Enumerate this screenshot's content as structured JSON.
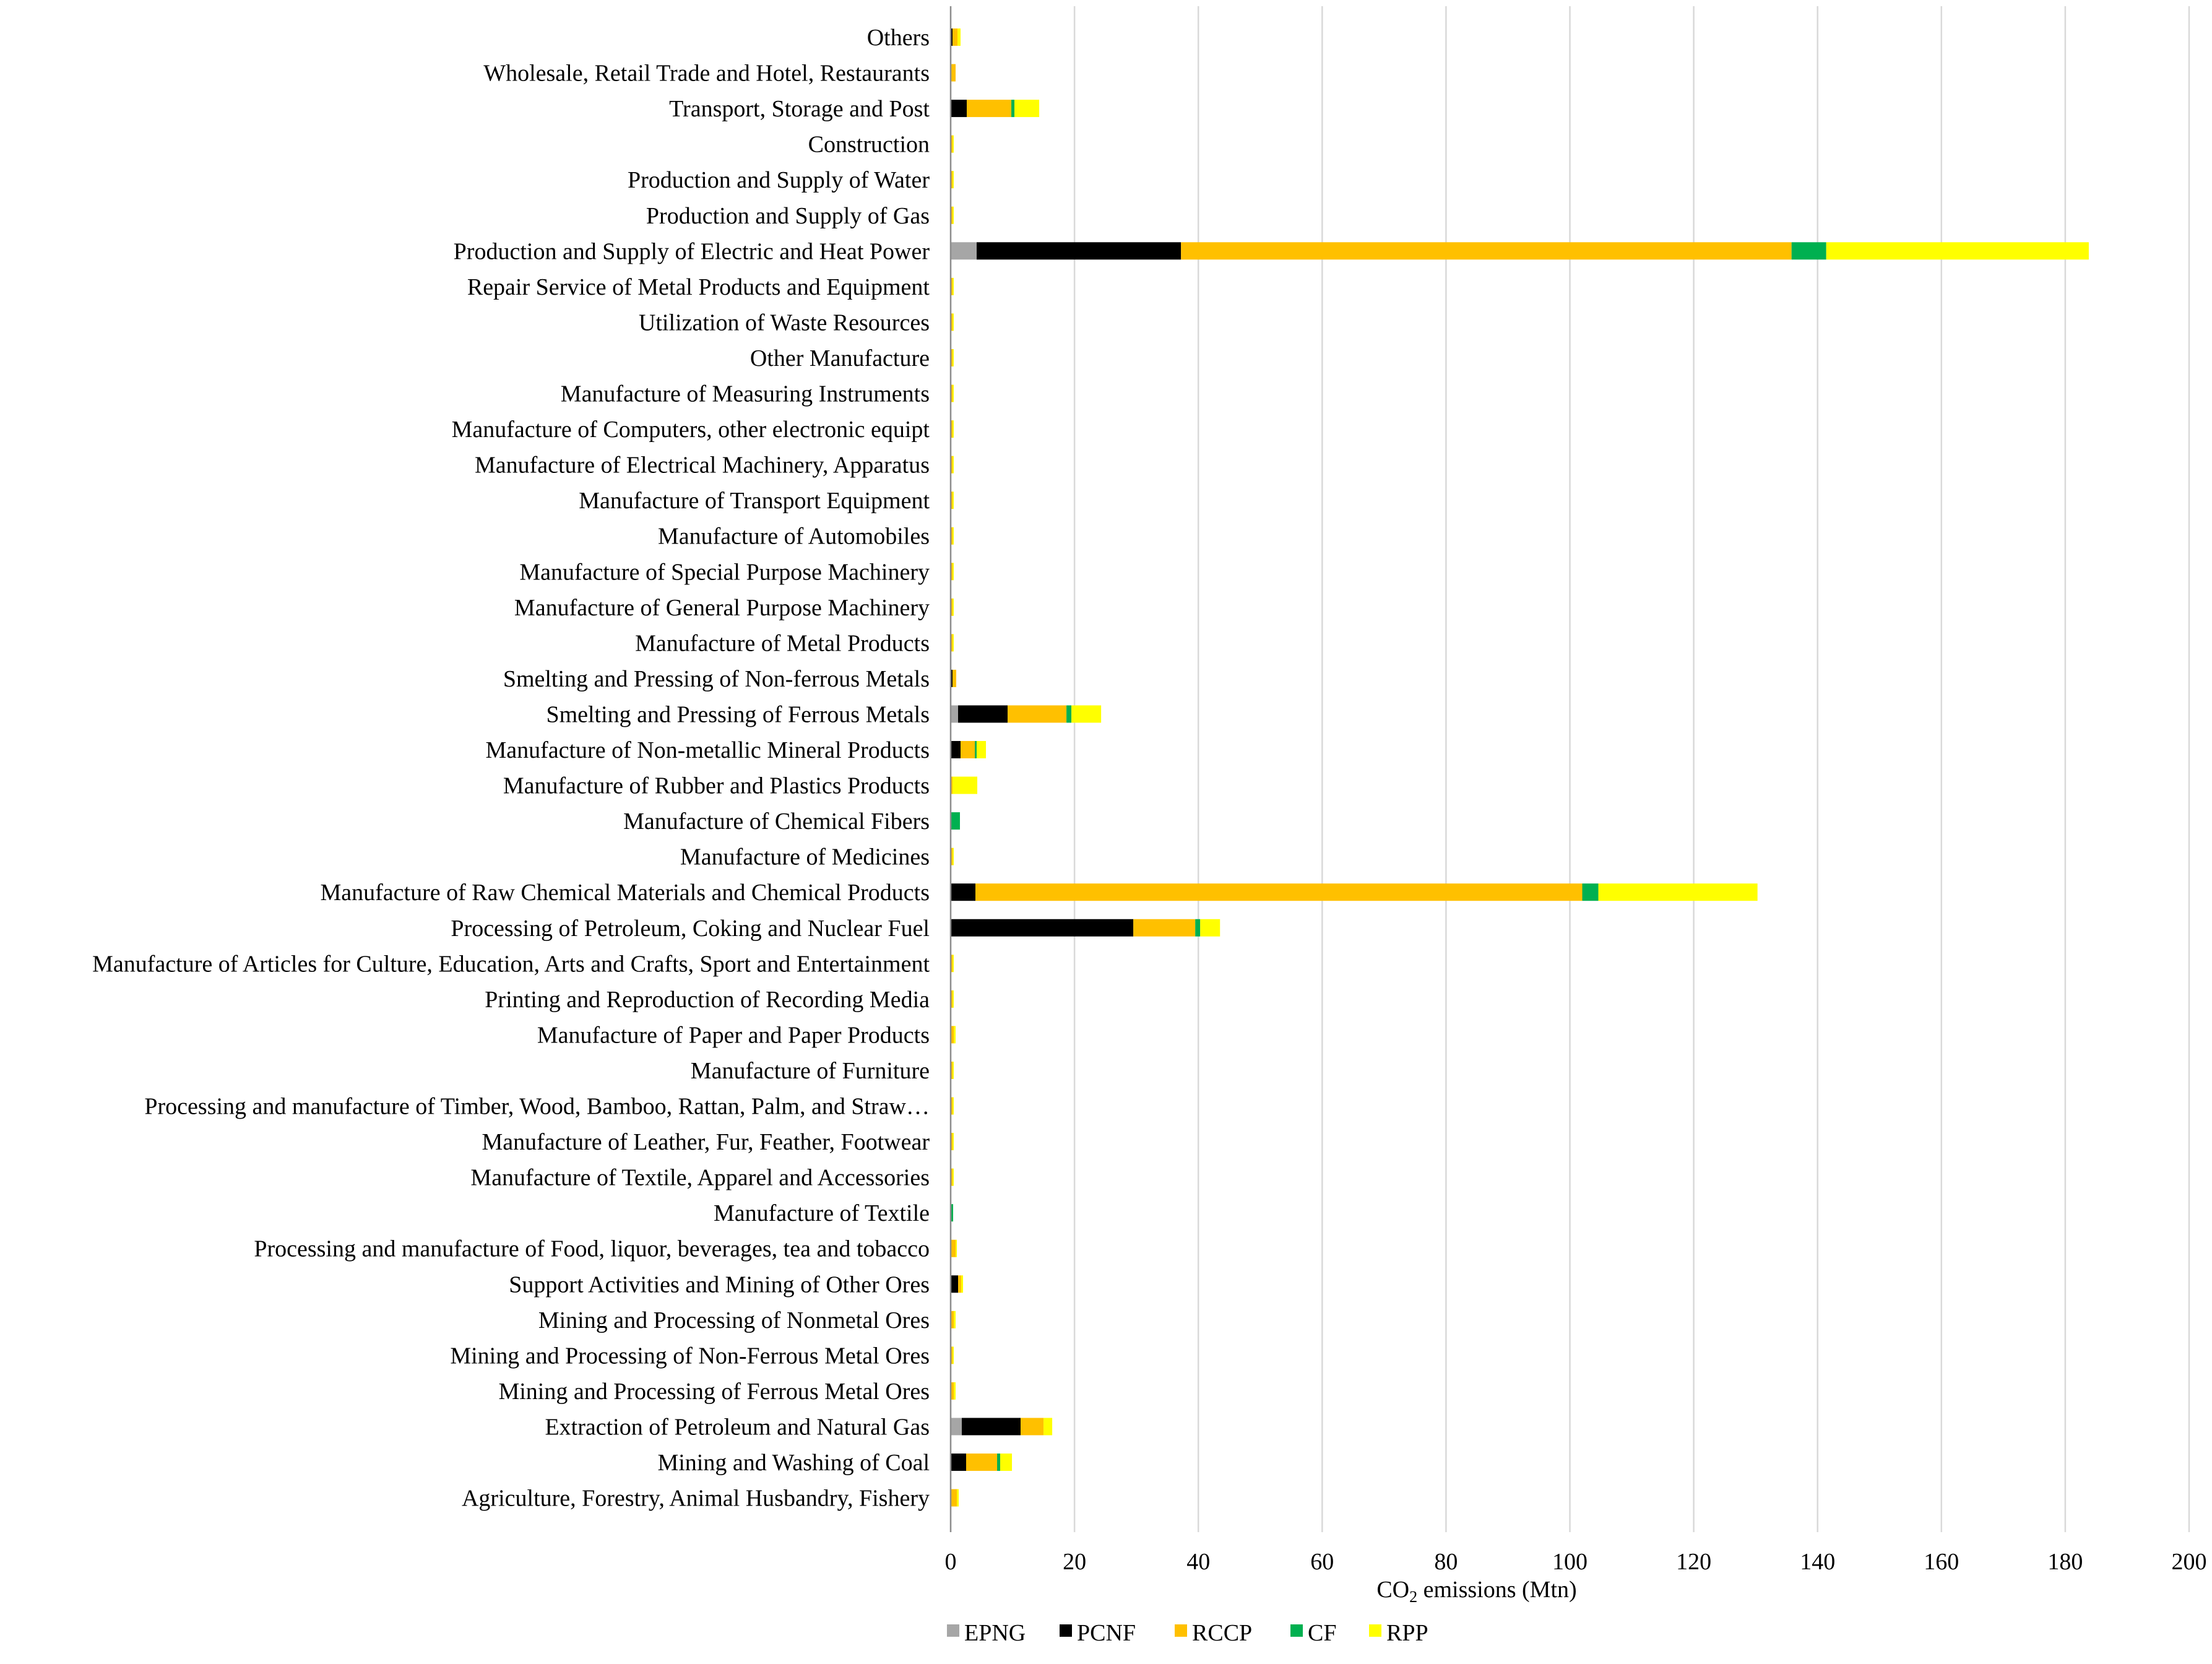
{
  "chart_data": {
    "type": "bar",
    "orientation": "horizontal",
    "stacked": true,
    "title": "",
    "xlabel_main": "CO",
    "xlabel_sub": "2",
    "xlabel_rest": " emissions (Mtn)",
    "xlim": [
      0,
      200
    ],
    "xticks": [
      "0",
      "20",
      "40",
      "60",
      "80",
      "100",
      "120",
      "140",
      "160",
      "180",
      "200"
    ],
    "grid": true,
    "legend_position": "bottom",
    "categories": [
      "Others",
      "Wholesale, Retail Trade and Hotel, Restaurants",
      "Transport, Storage and Post",
      "Construction",
      "Production and Supply of Water",
      "Production and Supply of Gas",
      "Production and Supply of Electric and Heat Power",
      "Repair Service of Metal Products and Equipment",
      "Utilization of Waste Resources",
      "Other Manufacture",
      "Manufacture of Measuring Instruments",
      "Manufacture of Computers, other electronic equipt",
      "Manufacture of Electrical Machinery, Apparatus",
      "Manufacture of Transport Equipment",
      "Manufacture of Automobiles",
      "Manufacture of Special Purpose Machinery",
      "Manufacture of General Purpose Machinery",
      "Manufacture of Metal Products",
      "Smelting and Pressing of Non-ferrous Metals",
      "Smelting and Pressing of Ferrous Metals",
      "Manufacture of Non-metallic Mineral Products",
      "Manufacture of Rubber and Plastics Products",
      "Manufacture of Chemical Fibers",
      "Manufacture of Medicines",
      "Manufacture of Raw Chemical Materials and Chemical Products",
      "Processing of Petroleum, Coking and Nuclear Fuel",
      "Manufacture of Articles for Culture, Education, Arts and Crafts, Sport and Entertainment",
      "Printing and Reproduction of Recording Media",
      "Manufacture of Paper and Paper Products",
      "Manufacture of Furniture",
      "Processing and manufacture of Timber, Wood, Bamboo, Rattan, Palm, and Straw…",
      "Manufacture of Leather, Fur, Feather, Footwear",
      "Manufacture of Textile, Apparel and Accessories",
      "Manufacture of Textile",
      "Processing and manufacture of Food, liquor, beverages, tea and tobacco",
      "Support Activities and Mining of Other Ores",
      "Mining and Processing of Nonmetal Ores",
      "Mining and Processing of Non-Ferrous Metal Ores",
      "Mining and Processing of Ferrous Metal Ores",
      "Extraction of Petroleum and Natural Gas",
      "Mining and Washing of Coal",
      "Agriculture, Forestry, Animal Husbandry, Fishery"
    ],
    "series": [
      {
        "name": "EPNG",
        "color": "#a6a6a6",
        "values": [
          0,
          0,
          0,
          0,
          0,
          0,
          4.2,
          0,
          0,
          0,
          0,
          0,
          0,
          0,
          0,
          0,
          0,
          0,
          0,
          1.2,
          0,
          0,
          0,
          0,
          0,
          0,
          0,
          0,
          0,
          0,
          0,
          0,
          0,
          0,
          0,
          0,
          0,
          0,
          0,
          1.8,
          0,
          0
        ]
      },
      {
        "name": "PCNF",
        "color": "#000000",
        "values": [
          0.3,
          0,
          2.6,
          0,
          0,
          0,
          33.0,
          0,
          0,
          0,
          0,
          0,
          0,
          0,
          0,
          0,
          0,
          0,
          0.3,
          8.0,
          1.6,
          0,
          0,
          0,
          4.0,
          29.5,
          0,
          0,
          0,
          0,
          0,
          0,
          0,
          0,
          0,
          1.2,
          0,
          0,
          0,
          9.5,
          2.5,
          0
        ]
      },
      {
        "name": "RCCP",
        "color": "#ffc000",
        "values": [
          0.8,
          0.8,
          7.2,
          0.3,
          0.3,
          0.3,
          98.6,
          0.3,
          0.3,
          0.3,
          0.3,
          0.3,
          0.3,
          0.3,
          0.3,
          0.3,
          0.3,
          0.3,
          0.6,
          9.5,
          2.3,
          0.3,
          0,
          0.3,
          98.0,
          10.0,
          0.3,
          0.3,
          0.5,
          0.3,
          0.3,
          0.3,
          0.3,
          0,
          0.8,
          0.5,
          0.5,
          0.3,
          0.5,
          3.7,
          5.0,
          1.0
        ]
      },
      {
        "name": "CF",
        "color": "#00b050",
        "values": [
          0,
          0,
          0.5,
          0,
          0,
          0,
          5.6,
          0,
          0,
          0,
          0,
          0,
          0,
          0,
          0,
          0,
          0,
          0,
          0,
          0.8,
          0.3,
          0,
          1.5,
          0,
          2.6,
          0.8,
          0,
          0,
          0,
          0,
          0,
          0,
          0,
          0.4,
          0,
          0,
          0,
          0,
          0,
          0,
          0.5,
          0
        ]
      },
      {
        "name": "RPP",
        "color": "#ffff00",
        "values": [
          0.5,
          0,
          4.0,
          0.2,
          0.2,
          0.2,
          42.4,
          0.2,
          0.2,
          0.2,
          0.2,
          0.2,
          0.2,
          0.2,
          0.2,
          0.2,
          0.2,
          0.2,
          0,
          4.8,
          1.5,
          4.0,
          0,
          0.2,
          25.7,
          3.2,
          0.2,
          0.2,
          0.3,
          0.2,
          0.2,
          0.2,
          0.2,
          0,
          0.2,
          0.3,
          0.3,
          0.2,
          0.3,
          1.4,
          1.9,
          0.3
        ]
      }
    ]
  }
}
